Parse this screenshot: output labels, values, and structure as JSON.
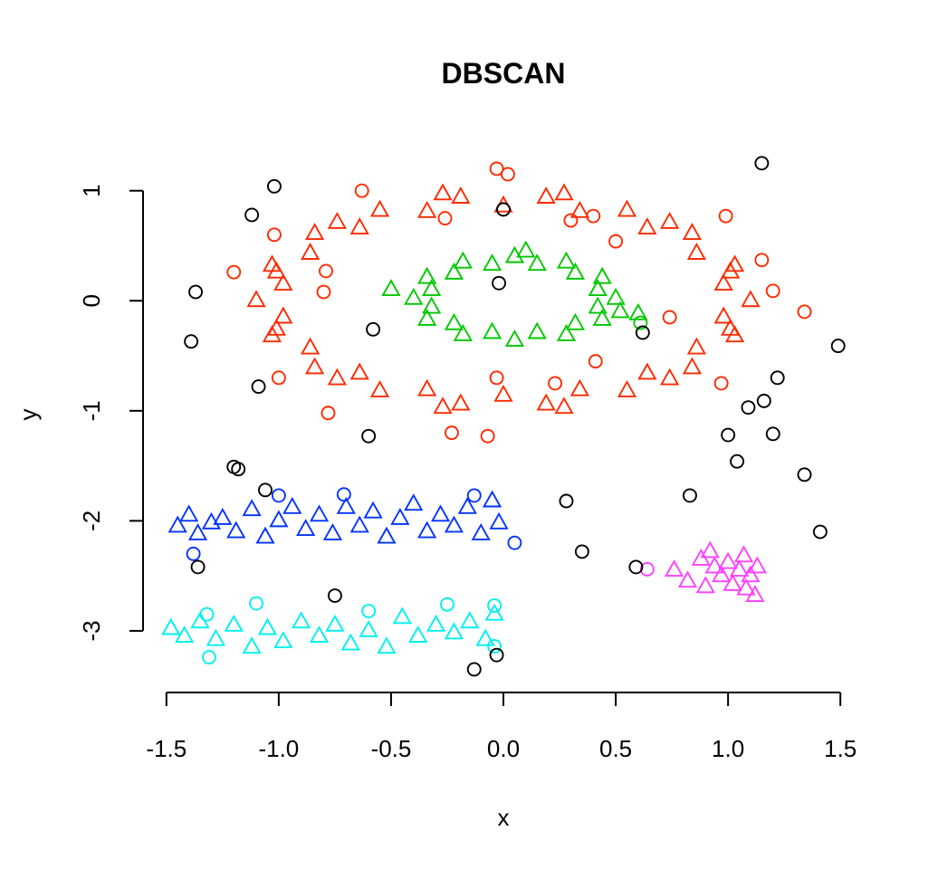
{
  "chart_data": {
    "type": "scatter",
    "title": "DBSCAN",
    "x_label": "x",
    "y_label": "y",
    "xlim": [
      -1.6,
      1.6
    ],
    "ylim": [
      -3.56,
      1.45
    ],
    "xticks": [
      -1.5,
      {
        "value": -1,
        "label": "-1.0"
      },
      -0.5,
      {
        "value": 0,
        "label": "0.0"
      },
      0.5,
      {
        "value": 1,
        "label": "1.0"
      },
      1.5
    ],
    "yticks": [
      -3,
      -2,
      -1,
      0,
      1
    ],
    "grid": false,
    "series": [
      {
        "color": "#ff2a00",
        "marker": "triangle",
        "x": [
          1.1,
          0.98,
          1.03,
          0.86,
          0.84,
          0.64,
          0.55,
          0.34,
          0.19,
          0.0,
          -0.19,
          -0.34,
          -0.55,
          -0.64,
          -0.84,
          -0.86,
          -1.03,
          -0.98,
          -1.1,
          -0.98,
          -1.03,
          -0.86,
          -0.84,
          -0.64,
          -0.55,
          -0.34,
          -0.19,
          0.0,
          0.19,
          0.34,
          0.55,
          0.64,
          0.84,
          0.86,
          1.03,
          0.98,
          1.01,
          0.74,
          0.27,
          -0.27,
          -0.74,
          -1.01,
          -1.01,
          -0.74,
          -0.27,
          0.27,
          0.74,
          1.01
        ],
        "y": [
          0.0,
          0.15,
          0.32,
          0.43,
          0.61,
          0.66,
          0.82,
          0.81,
          0.94,
          0.86,
          0.94,
          0.81,
          0.82,
          0.66,
          0.61,
          0.43,
          0.32,
          0.15,
          0.0,
          -0.15,
          -0.32,
          -0.43,
          -0.61,
          -0.66,
          -0.82,
          -0.81,
          -0.94,
          -0.86,
          -0.94,
          -0.81,
          -0.82,
          -0.66,
          -0.61,
          -0.43,
          -0.32,
          -0.15,
          0.26,
          0.71,
          0.97,
          0.97,
          0.71,
          0.26,
          -0.26,
          -0.71,
          -0.97,
          -0.97,
          -0.71,
          -0.26
        ]
      },
      {
        "color": "#ff2a00",
        "marker": "circle",
        "x": [
          -0.03,
          0.02,
          -0.63,
          -1.2,
          -1.02,
          -0.79,
          -0.8,
          -1.0,
          -0.78,
          -0.23,
          -0.07,
          -0.03,
          0.23,
          0.41,
          0.5,
          0.99,
          1.15,
          1.2,
          1.34,
          0.97,
          0.74,
          0.3,
          0.4,
          -0.26
        ],
        "y": [
          1.2,
          1.15,
          1.0,
          0.26,
          0.6,
          0.27,
          0.08,
          -0.7,
          -1.02,
          -1.2,
          -1.23,
          -0.7,
          -0.75,
          -0.55,
          0.54,
          0.77,
          0.37,
          0.09,
          -0.1,
          -0.75,
          -0.15,
          0.73,
          0.77,
          0.75
        ]
      },
      {
        "color": "#00c800",
        "marker": "triangle",
        "x": [
          0.5,
          0.42,
          0.44,
          0.32,
          0.28,
          0.15,
          0.05,
          -0.05,
          -0.18,
          -0.22,
          -0.34,
          -0.32,
          -0.4,
          -0.32,
          -0.34,
          -0.22,
          -0.18,
          -0.05,
          0.05,
          0.15,
          0.28,
          0.32,
          0.44,
          0.42,
          -0.5,
          0.52,
          0.6,
          0.1
        ],
        "y": [
          0.02,
          0.1,
          0.21,
          0.25,
          0.35,
          0.33,
          0.4,
          0.33,
          0.35,
          0.25,
          0.21,
          0.1,
          0.02,
          -0.06,
          -0.17,
          -0.21,
          -0.31,
          -0.29,
          -0.36,
          -0.29,
          -0.31,
          -0.21,
          -0.17,
          -0.06,
          0.1,
          -0.1,
          -0.12,
          0.45
        ]
      },
      {
        "color": "#00c800",
        "marker": "circle",
        "x": [
          0.61
        ],
        "y": [
          -0.2
        ]
      },
      {
        "color": "#0433ff",
        "marker": "triangle",
        "x": [
          -1.45,
          -1.4,
          -1.36,
          -1.3,
          -1.25,
          -1.19,
          -1.12,
          -1.06,
          -1.0,
          -0.94,
          -0.88,
          -0.82,
          -0.76,
          -0.7,
          -0.64,
          -0.58,
          -0.52,
          -0.46,
          -0.4,
          -0.34,
          -0.28,
          -0.22,
          -0.16,
          -0.1,
          -0.05,
          -0.02
        ],
        "y": [
          -2.05,
          -1.95,
          -2.12,
          -2.02,
          -1.98,
          -2.1,
          -1.9,
          -2.15,
          -2.0,
          -1.88,
          -2.08,
          -1.95,
          -2.12,
          -1.88,
          -2.05,
          -1.92,
          -2.15,
          -1.98,
          -1.85,
          -2.1,
          -1.95,
          -2.05,
          -1.88,
          -2.12,
          -1.82,
          -2.02
        ]
      },
      {
        "color": "#0433ff",
        "marker": "circle",
        "x": [
          -1.38,
          -1.0,
          -0.71,
          -0.13,
          0.05
        ],
        "y": [
          -2.3,
          -1.77,
          -1.76,
          -1.77,
          -2.2
        ]
      },
      {
        "color": "#00f0f0",
        "marker": "triangle",
        "x": [
          -1.48,
          -1.42,
          -1.35,
          -1.28,
          -1.2,
          -1.12,
          -1.05,
          -0.98,
          -0.9,
          -0.82,
          -0.75,
          -0.68,
          -0.6,
          -0.52,
          -0.45,
          -0.38,
          -0.3,
          -0.22,
          -0.15,
          -0.08,
          -0.04
        ],
        "y": [
          -2.98,
          -3.05,
          -2.92,
          -3.08,
          -2.95,
          -3.15,
          -2.98,
          -3.1,
          -2.92,
          -3.05,
          -2.95,
          -3.12,
          -3.0,
          -3.15,
          -2.88,
          -3.05,
          -2.95,
          -3.02,
          -2.92,
          -3.08,
          -2.85
        ]
      },
      {
        "color": "#00f0f0",
        "marker": "circle",
        "x": [
          -1.32,
          -1.31,
          -1.1,
          -0.6,
          -0.25,
          -0.04,
          -0.04
        ],
        "y": [
          -2.85,
          -3.24,
          -2.75,
          -2.82,
          -2.76,
          -2.77,
          -3.14
        ]
      },
      {
        "color": "#ff40ff",
        "marker": "triangle",
        "x": [
          0.76,
          0.82,
          0.88,
          0.9,
          0.94,
          0.97,
          1.0,
          1.02,
          1.05,
          1.07,
          1.08,
          1.1,
          1.13,
          1.12,
          0.92
        ],
        "y": [
          -2.45,
          -2.55,
          -2.35,
          -2.6,
          -2.42,
          -2.5,
          -2.38,
          -2.58,
          -2.45,
          -2.32,
          -2.62,
          -2.5,
          -2.42,
          -2.68,
          -2.28
        ]
      },
      {
        "color": "#ff40ff",
        "marker": "circle",
        "x": [
          0.64
        ],
        "y": [
          -2.44
        ]
      },
      {
        "color": "#000000",
        "marker": "circle",
        "x": [
          1.15,
          -1.02,
          -1.12,
          0.0,
          -1.37,
          -1.39,
          -0.58,
          -0.02,
          0.62,
          1.49,
          1.22,
          1.16,
          1.09,
          -1.09,
          1.0,
          1.2,
          1.04,
          -0.6,
          -1.2,
          -1.18,
          -1.06,
          0.28,
          0.83,
          1.34,
          1.41,
          0.35,
          0.59,
          -1.36,
          -0.75,
          -0.03,
          -0.13
        ],
        "y": [
          1.25,
          1.04,
          0.78,
          0.83,
          0.08,
          -0.37,
          -0.26,
          0.16,
          -0.29,
          -0.41,
          -0.7,
          -0.91,
          -0.97,
          -0.78,
          -1.22,
          -1.21,
          -1.46,
          -1.23,
          -1.51,
          -1.53,
          -1.72,
          -1.82,
          -1.77,
          -1.58,
          -2.1,
          -2.28,
          -2.42,
          -2.42,
          -2.68,
          -3.22,
          -3.35
        ]
      }
    ]
  }
}
